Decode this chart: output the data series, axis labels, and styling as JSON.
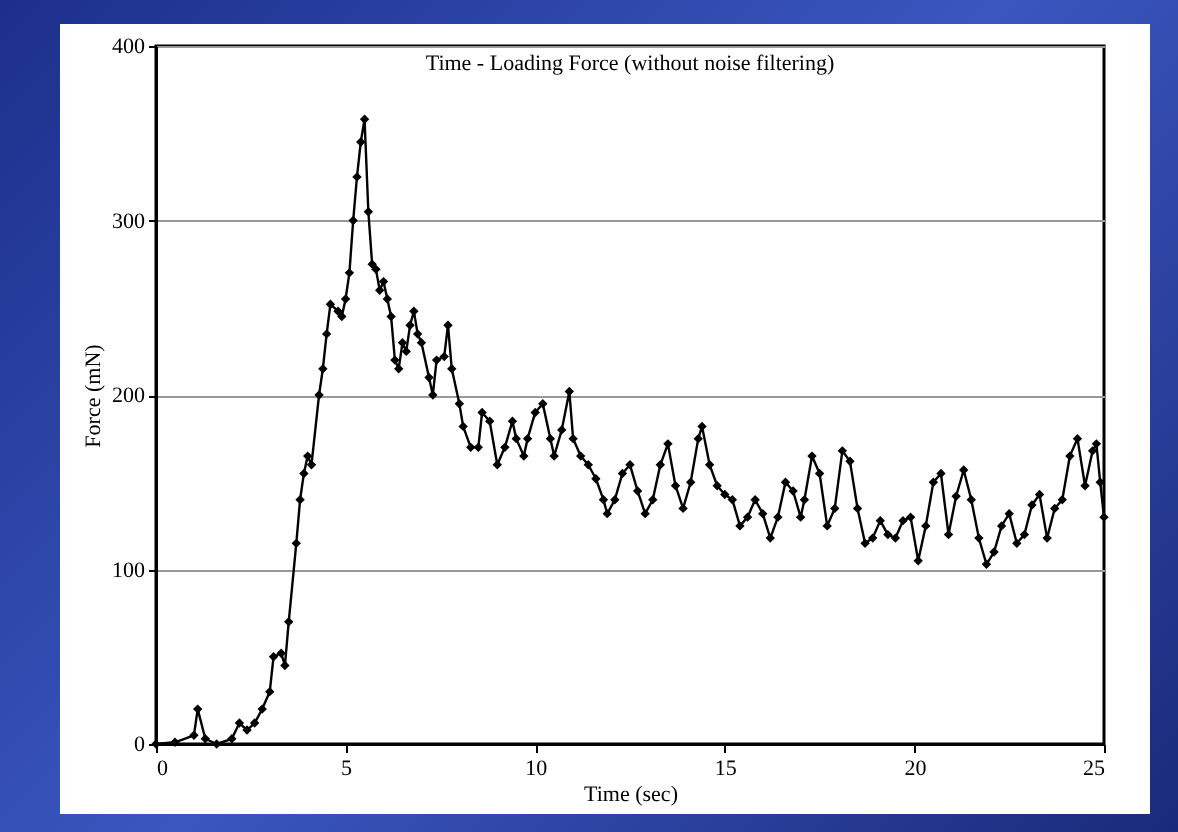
{
  "chart_data": {
    "type": "line",
    "title": "Time - Loading Force (without noise filtering)",
    "xlabel": "Time (sec)",
    "ylabel": "Force (mN)",
    "x": [
      0,
      0.5,
      1.0,
      1.1,
      1.3,
      1.6,
      2.0,
      2.2,
      2.4,
      2.6,
      2.8,
      3.0,
      3.1,
      3.3,
      3.4,
      3.5,
      3.7,
      3.8,
      3.9,
      4.0,
      4.1,
      4.3,
      4.4,
      4.5,
      4.6,
      4.8,
      4.9,
      5.0,
      5.1,
      5.2,
      5.3,
      5.4,
      5.5,
      5.6,
      5.7,
      5.8,
      5.9,
      6.0,
      6.1,
      6.2,
      6.3,
      6.4,
      6.5,
      6.6,
      6.7,
      6.8,
      6.9,
      7.0,
      7.2,
      7.3,
      7.4,
      7.6,
      7.7,
      7.8,
      8.0,
      8.1,
      8.3,
      8.5,
      8.6,
      8.8,
      9.0,
      9.2,
      9.4,
      9.5,
      9.7,
      9.8,
      10.0,
      10.2,
      10.4,
      10.5,
      10.7,
      10.9,
      11.0,
      11.2,
      11.4,
      11.6,
      11.8,
      11.9,
      12.1,
      12.3,
      12.5,
      12.7,
      12.9,
      13.1,
      13.3,
      13.5,
      13.7,
      13.9,
      14.1,
      14.3,
      14.4,
      14.6,
      14.8,
      15.0,
      15.2,
      15.4,
      15.6,
      15.8,
      16.0,
      16.2,
      16.4,
      16.6,
      16.8,
      17.0,
      17.1,
      17.3,
      17.5,
      17.7,
      17.9,
      18.1,
      18.3,
      18.5,
      18.7,
      18.9,
      19.1,
      19.3,
      19.5,
      19.7,
      19.9,
      20.1,
      20.3,
      20.5,
      20.7,
      20.9,
      21.1,
      21.3,
      21.5,
      21.7,
      21.9,
      22.1,
      22.3,
      22.5,
      22.7,
      22.9,
      23.1,
      23.3,
      23.5,
      23.7,
      23.9,
      24.1,
      24.3,
      24.5,
      24.7,
      24.8,
      24.9,
      25.0
    ],
    "series": [
      {
        "color": "#000000",
        "values": [
          0,
          1,
          5,
          20,
          3,
          0,
          3,
          12,
          8,
          12,
          20,
          30,
          50,
          52,
          45,
          70,
          115,
          140,
          155,
          165,
          160,
          200,
          215,
          235,
          252,
          248,
          245,
          255,
          270,
          300,
          325,
          345,
          358,
          305,
          275,
          272,
          260,
          265,
          255,
          245,
          220,
          215,
          230,
          225,
          240,
          248,
          235,
          230,
          210,
          200,
          220,
          222,
          240,
          215,
          195,
          182,
          170,
          170,
          190,
          185,
          160,
          170,
          185,
          175,
          165,
          175,
          190,
          195,
          175,
          165,
          180,
          202,
          175,
          165,
          160,
          152,
          140,
          132,
          140,
          155,
          160,
          145,
          132,
          140,
          160,
          172,
          148,
          135,
          150,
          175,
          182,
          160,
          148,
          143,
          140,
          125,
          130,
          140,
          132,
          118,
          130,
          150,
          145,
          130,
          140,
          165,
          155,
          125,
          135,
          168,
          162,
          135,
          115,
          118,
          128,
          120,
          118,
          128,
          130,
          105,
          125,
          150,
          155,
          120,
          142,
          157,
          140,
          118,
          103,
          110,
          125,
          132,
          115,
          120,
          137,
          143,
          118,
          135,
          140,
          165,
          175,
          148,
          168,
          172,
          150,
          130
        ]
      }
    ],
    "xlim": [
      0,
      25
    ],
    "xticks": [
      0,
      5,
      10,
      15,
      20,
      25
    ],
    "ylim": [
      0,
      400
    ],
    "yticks": [
      0,
      100,
      200,
      300,
      400
    ],
    "grid": "y",
    "marker": "diamond",
    "line_style": "solid"
  }
}
